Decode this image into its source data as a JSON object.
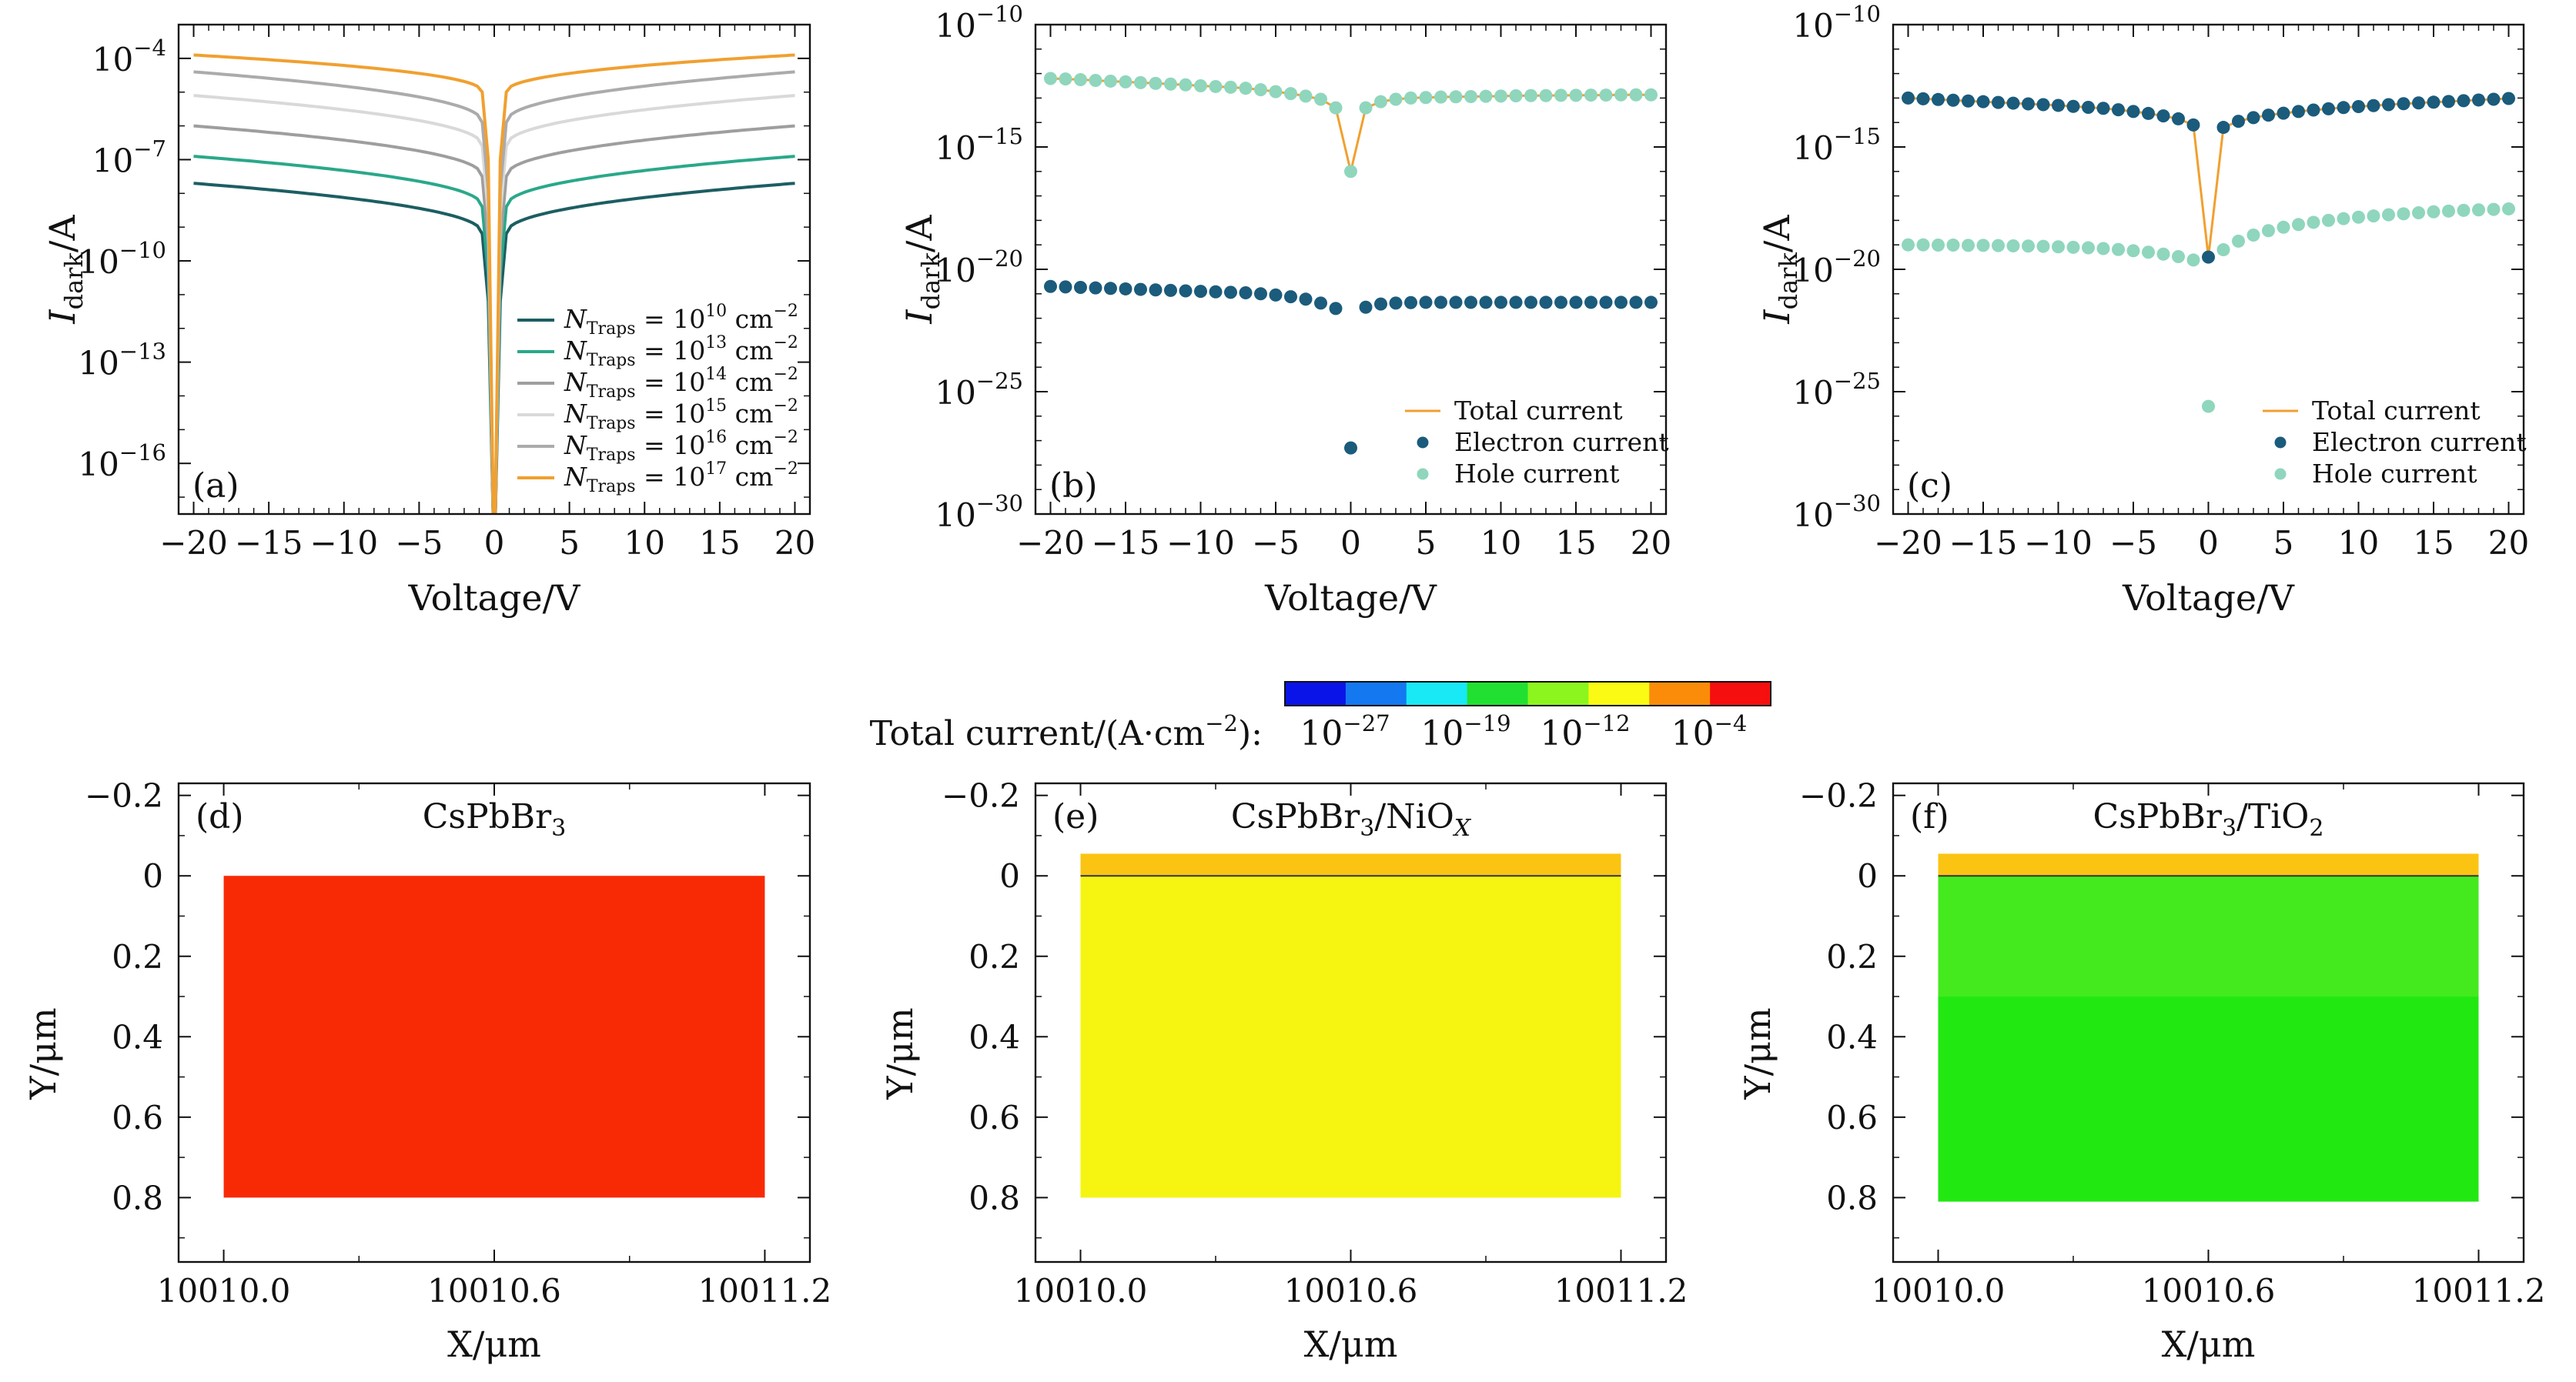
{
  "figure": {
    "colorbar": {
      "label": "Total current/(A·cm",
      "label_exp": "−2",
      "label_end": "):",
      "colors": [
        "#0a14e8",
        "#1478f0",
        "#19e8f5",
        "#21e031",
        "#8cf51e",
        "#fafa14",
        "#fa8c0a",
        "#f50f0f"
      ],
      "ticks": [
        {
          "base": "10",
          "exp": "−27"
        },
        {
          "base": "10",
          "exp": "−19"
        },
        {
          "base": "10",
          "exp": "−12"
        },
        {
          "base": "10",
          "exp": "−4"
        }
      ]
    }
  },
  "chart_data": [
    {
      "id": "a",
      "type": "line",
      "panel_label": "(a)",
      "xlabel": "Voltage/V",
      "ylabel": "I",
      "ylabel_sub": "dark",
      "ylabel_end": "/A",
      "yscale": "log",
      "xlim": [
        -21,
        21
      ],
      "ylim_exp": [
        -17.5,
        -3
      ],
      "x_ticks": [
        "−20",
        "−15",
        "−10",
        "−5",
        "0",
        "5",
        "10",
        "15",
        "20"
      ],
      "y_ticks": [
        {
          "base": "10",
          "exp": "−4"
        },
        {
          "base": "10",
          "exp": "−7"
        },
        {
          "base": "10",
          "exp": "−10"
        },
        {
          "base": "10",
          "exp": "−13"
        },
        {
          "base": "10",
          "exp": "−16"
        }
      ],
      "legend_position": "bottom-right",
      "series": [
        {
          "name": "N",
          "name_sub": "Traps",
          "name_mid": " = 10",
          "name_exp": "10",
          "name_end": " cm",
          "name_end_exp": "−2",
          "color": "#1c5e63",
          "log10_plateau": -7.7,
          "log10_edge": -9.2
        },
        {
          "name": "N",
          "name_sub": "Traps",
          "name_mid": " = 10",
          "name_exp": "13",
          "name_end": " cm",
          "name_end_exp": "−2",
          "color": "#2aa88a",
          "log10_plateau": -6.9,
          "log10_edge": -8.4
        },
        {
          "name": "N",
          "name_sub": "Traps",
          "name_mid": " = 10",
          "name_exp": "14",
          "name_end": " cm",
          "name_end_exp": "−2",
          "color": "#9e9e9e",
          "log10_plateau": -6.0,
          "log10_edge": -7.5
        },
        {
          "name": "N",
          "name_sub": "Traps",
          "name_mid": " = 10",
          "name_exp": "15",
          "name_end": " cm",
          "name_end_exp": "−2",
          "color": "#d9d9d9",
          "log10_plateau": -5.1,
          "log10_edge": -6.6
        },
        {
          "name": "N",
          "name_sub": "Traps",
          "name_mid": " = 10",
          "name_exp": "16",
          "name_end": " cm",
          "name_end_exp": "−2",
          "color": "#ababab",
          "log10_plateau": -4.4,
          "log10_edge": -5.9
        },
        {
          "name": "N",
          "name_sub": "Traps",
          "name_mid": " = 10",
          "name_exp": "17",
          "name_end": " cm",
          "name_end_exp": "−2",
          "color": "#f0a030",
          "log10_plateau": -3.9,
          "log10_edge": -5.0
        }
      ]
    },
    {
      "id": "b",
      "type": "scatter",
      "panel_label": "(b)",
      "xlabel": "Voltage/V",
      "ylabel": "I",
      "ylabel_sub": "dark",
      "ylabel_end": "/A",
      "yscale": "log",
      "xlim": [
        -21,
        21
      ],
      "ylim_exp": [
        -30,
        -10
      ],
      "x_ticks": [
        "−20",
        "−15",
        "−10",
        "−5",
        "0",
        "5",
        "10",
        "15",
        "20"
      ],
      "y_ticks": [
        {
          "base": "10",
          "exp": "−10"
        },
        {
          "base": "10",
          "exp": "−15"
        },
        {
          "base": "10",
          "exp": "−20"
        },
        {
          "base": "10",
          "exp": "−25"
        },
        {
          "base": "10",
          "exp": "−30"
        }
      ],
      "legend_position": "bottom-right",
      "series": [
        {
          "name": "Total current",
          "kind": "line",
          "color": "#f0a030"
        },
        {
          "name": "Electron current",
          "kind": "dots",
          "color": "#1b5b7c"
        },
        {
          "name": "Hole current",
          "kind": "dots",
          "color": "#8fd6bd"
        }
      ],
      "x": [
        -20,
        -19,
        -18,
        -17,
        -16,
        -15,
        -14,
        -13,
        -12,
        -11,
        -10,
        -9,
        -8,
        -7,
        -6,
        -5,
        -4,
        -3,
        -2,
        -1,
        0,
        1,
        2,
        3,
        4,
        5,
        6,
        7,
        8,
        9,
        10,
        11,
        12,
        13,
        14,
        15,
        16,
        17,
        18,
        19,
        20
      ],
      "electron_log10": [
        -20.7,
        -20.72,
        -20.74,
        -20.76,
        -20.78,
        -20.8,
        -20.82,
        -20.84,
        -20.86,
        -20.88,
        -20.9,
        -20.92,
        -20.94,
        -20.96,
        -21.0,
        -21.05,
        -21.12,
        -21.22,
        -21.38,
        -21.6,
        -27.3,
        -21.55,
        -21.42,
        -21.38,
        -21.36,
        -21.35,
        -21.35,
        -21.35,
        -21.35,
        -21.35,
        -21.35,
        -21.35,
        -21.35,
        -21.35,
        -21.35,
        -21.35,
        -21.35,
        -21.35,
        -21.35,
        -21.35,
        -21.35
      ],
      "hole_log10": [
        -12.2,
        -12.22,
        -12.25,
        -12.28,
        -12.31,
        -12.34,
        -12.37,
        -12.4,
        -12.43,
        -12.46,
        -12.5,
        -12.53,
        -12.56,
        -12.6,
        -12.66,
        -12.74,
        -12.82,
        -12.92,
        -13.05,
        -13.4,
        -16.0,
        -13.4,
        -13.15,
        -13.05,
        -13.0,
        -12.98,
        -12.96,
        -12.95,
        -12.94,
        -12.93,
        -12.92,
        -12.91,
        -12.9,
        -12.9,
        -12.89,
        -12.89,
        -12.88,
        -12.88,
        -12.87,
        -12.87,
        -12.87
      ]
    },
    {
      "id": "c",
      "type": "scatter",
      "panel_label": "(c)",
      "xlabel": "Voltage/V",
      "ylabel": "I",
      "ylabel_sub": "dark",
      "ylabel_end": "/A",
      "yscale": "log",
      "xlim": [
        -21,
        21
      ],
      "ylim_exp": [
        -30,
        -10
      ],
      "x_ticks": [
        "−20",
        "−15",
        "−10",
        "−5",
        "0",
        "5",
        "10",
        "15",
        "20"
      ],
      "y_ticks": [
        {
          "base": "10",
          "exp": "−10"
        },
        {
          "base": "10",
          "exp": "−15"
        },
        {
          "base": "10",
          "exp": "−20"
        },
        {
          "base": "10",
          "exp": "−25"
        },
        {
          "base": "10",
          "exp": "−30"
        }
      ],
      "legend_position": "bottom-right",
      "series": [
        {
          "name": "Total current",
          "kind": "line",
          "color": "#f0a030"
        },
        {
          "name": "Electron current",
          "kind": "dots",
          "color": "#1b5b7c"
        },
        {
          "name": "Hole current",
          "kind": "dots",
          "color": "#8fd6bd"
        }
      ],
      "x": [
        -20,
        -19,
        -18,
        -17,
        -16,
        -15,
        -14,
        -13,
        -12,
        -11,
        -10,
        -9,
        -8,
        -7,
        -6,
        -5,
        -4,
        -3,
        -2,
        -1,
        0,
        1,
        2,
        3,
        4,
        5,
        6,
        7,
        8,
        9,
        10,
        11,
        12,
        13,
        14,
        15,
        16,
        17,
        18,
        19,
        20
      ],
      "electron_log10": [
        -13.0,
        -13.03,
        -13.06,
        -13.09,
        -13.12,
        -13.15,
        -13.18,
        -13.21,
        -13.24,
        -13.27,
        -13.3,
        -13.34,
        -13.38,
        -13.42,
        -13.48,
        -13.55,
        -13.63,
        -13.73,
        -13.85,
        -14.1,
        -19.5,
        -14.2,
        -13.95,
        -13.8,
        -13.7,
        -13.62,
        -13.55,
        -13.49,
        -13.44,
        -13.39,
        -13.35,
        -13.31,
        -13.27,
        -13.23,
        -13.2,
        -13.17,
        -13.14,
        -13.11,
        -13.08,
        -13.05,
        -13.02
      ],
      "hole_log10": [
        -19.0,
        -19.0,
        -19.01,
        -19.01,
        -19.02,
        -19.02,
        -19.03,
        -19.04,
        -19.05,
        -19.06,
        -19.08,
        -19.1,
        -19.12,
        -19.15,
        -19.19,
        -19.24,
        -19.3,
        -19.38,
        -19.48,
        -19.62,
        -25.6,
        -19.2,
        -18.85,
        -18.6,
        -18.42,
        -18.28,
        -18.17,
        -18.08,
        -18.0,
        -17.93,
        -17.87,
        -17.82,
        -17.77,
        -17.73,
        -17.69,
        -17.65,
        -17.62,
        -17.59,
        -17.57,
        -17.55,
        -17.53
      ]
    },
    {
      "id": "d",
      "type": "heatmap",
      "panel_label": "(d)",
      "title": "CsPbBr",
      "title_sub": "3",
      "title_mid": "",
      "title_sub2": "",
      "xlabel": "X/μm",
      "ylabel": "Y/μm",
      "x_ticks": [
        "10010.0",
        "10010.6",
        "10011.2"
      ],
      "y_ticks": [
        "−0.2",
        "0",
        "0.2",
        "0.4",
        "0.6",
        "0.8"
      ],
      "xlim": [
        10009.9,
        10011.3
      ],
      "ylim": [
        -0.23,
        0.96
      ],
      "regions": [
        {
          "x": [
            10010.0,
            10011.2
          ],
          "y": [
            0.0,
            0.8
          ],
          "color": "#f82a06"
        }
      ]
    },
    {
      "id": "e",
      "type": "heatmap",
      "panel_label": "(e)",
      "title": "CsPbBr",
      "title_sub": "3",
      "title_mid": "/NiO",
      "title_sub2": "X",
      "xlabel": "X/μm",
      "ylabel": "Y/μm",
      "x_ticks": [
        "10010.0",
        "10010.6",
        "10011.2"
      ],
      "y_ticks": [
        "−0.2",
        "0",
        "0.2",
        "0.4",
        "0.6",
        "0.8"
      ],
      "xlim": [
        10009.9,
        10011.3
      ],
      "ylim": [
        -0.23,
        0.96
      ],
      "regions": [
        {
          "x": [
            10010.0,
            10011.2
          ],
          "y": [
            -0.055,
            0.0
          ],
          "color": "#fbc413"
        },
        {
          "x": [
            10010.0,
            10011.2
          ],
          "y": [
            0.0,
            0.8
          ],
          "color": "#f5f511"
        }
      ]
    },
    {
      "id": "f",
      "type": "heatmap",
      "panel_label": "(f)",
      "title": "CsPbBr",
      "title_sub": "3",
      "title_mid": "/TiO",
      "title_sub2": "2",
      "xlabel": "X/μm",
      "ylabel": "Y/μm",
      "x_ticks": [
        "10010.0",
        "10010.6",
        "10011.2"
      ],
      "y_ticks": [
        "−0.2",
        "0",
        "0.2",
        "0.4",
        "0.6",
        "0.8"
      ],
      "xlim": [
        10009.9,
        10011.3
      ],
      "ylim": [
        -0.23,
        0.96
      ],
      "regions": [
        {
          "x": [
            10010.0,
            10011.2
          ],
          "y": [
            -0.055,
            0.0
          ],
          "color": "#fbc413"
        },
        {
          "x": [
            10010.0,
            10011.2
          ],
          "y": [
            0.0,
            0.3
          ],
          "color": "#44ea1e"
        },
        {
          "x": [
            10010.0,
            10011.2
          ],
          "y": [
            0.3,
            0.81
          ],
          "color": "#22e812"
        }
      ]
    }
  ]
}
